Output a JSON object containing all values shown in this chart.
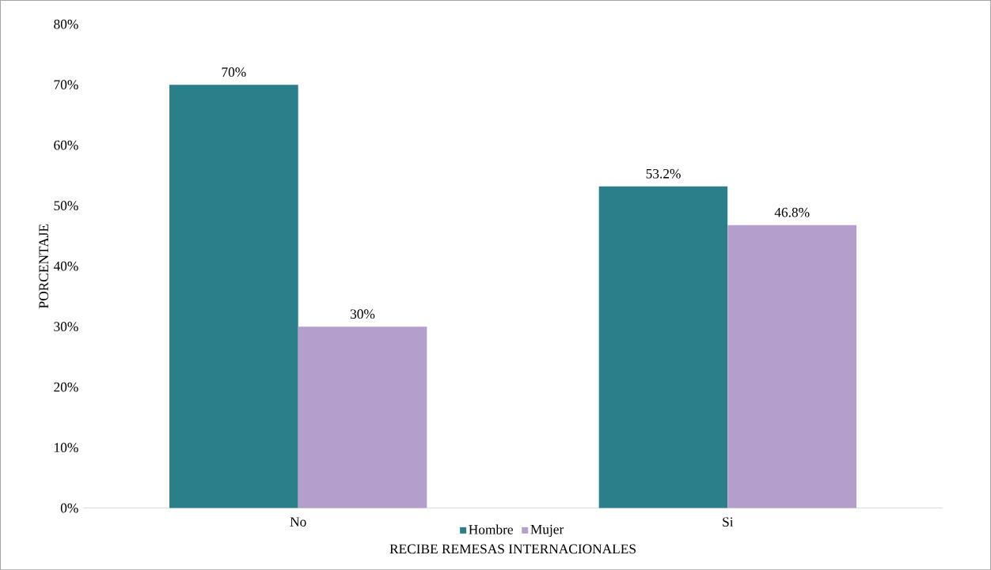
{
  "chart_data": {
    "type": "bar",
    "xlabel": "RECIBE REMESAS INTERNACIONALES",
    "ylabel": "PORCENTAJE",
    "categories": [
      "No",
      "Si"
    ],
    "series": [
      {
        "name": "Hombre",
        "color": "#2b7f8b",
        "values": [
          70,
          53.2
        ],
        "value_labels": [
          "70%",
          "53.2%"
        ]
      },
      {
        "name": "Mujer",
        "color": "#b49ecb",
        "values": [
          30,
          46.8
        ],
        "value_labels": [
          "30%",
          "46.8%"
        ]
      }
    ],
    "ylim": [
      0,
      80
    ],
    "yticks": [
      {
        "value": 0,
        "label": "0%"
      },
      {
        "value": 10,
        "label": "10%"
      },
      {
        "value": 20,
        "label": "20%"
      },
      {
        "value": 30,
        "label": "30%"
      },
      {
        "value": 40,
        "label": "40%"
      },
      {
        "value": 50,
        "label": "50%"
      },
      {
        "value": 60,
        "label": "60%"
      },
      {
        "value": 70,
        "label": "70%"
      },
      {
        "value": 80,
        "label": "80%"
      }
    ],
    "grid": false,
    "legend": "bottom"
  }
}
